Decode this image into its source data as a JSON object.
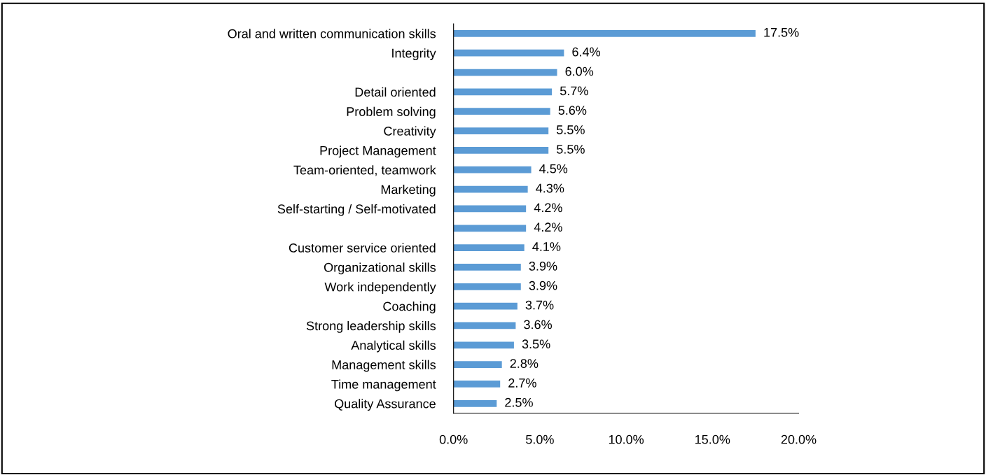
{
  "chart_data": {
    "type": "bar",
    "orientation": "horizontal",
    "categories": [
      "Oral and written communication skills",
      "Integrity",
      null,
      "Detail oriented",
      "Problem solving",
      "Creativity",
      "Project Management",
      "Team-oriented, teamwork",
      "Marketing",
      "Self-starting / Self-motivated",
      null,
      "Customer service oriented",
      "Organizational skills",
      "Work independently",
      "Coaching",
      "Strong leadership skills",
      "Analytical skills",
      "Management skills",
      "Time management",
      "Quality Assurance"
    ],
    "values": [
      17.5,
      6.4,
      6.0,
      5.7,
      5.6,
      5.5,
      5.5,
      4.5,
      4.3,
      4.2,
      4.2,
      4.1,
      3.9,
      3.9,
      3.7,
      3.6,
      3.5,
      2.8,
      2.7,
      2.5
    ],
    "value_labels": [
      "17.5%",
      "6.4%",
      "6.0%",
      "5.7%",
      "5.6%",
      "5.5%",
      "5.5%",
      "4.5%",
      "4.3%",
      "4.2%",
      "4.2%",
      "4.1%",
      "3.9%",
      "3.9%",
      "3.7%",
      "3.6%",
      "3.5%",
      "2.8%",
      "2.7%",
      "2.5%"
    ],
    "color": "#5b9bd5",
    "xlim": [
      0,
      20
    ],
    "xticks": [
      {
        "value": 0,
        "label": "0.0%"
      },
      {
        "value": 5,
        "label": "5.0%"
      },
      {
        "value": 10,
        "label": "10.0%"
      },
      {
        "value": 15,
        "label": "15.0%"
      },
      {
        "value": 20,
        "label": "20.0%"
      }
    ],
    "grid": false,
    "legend": false
  }
}
